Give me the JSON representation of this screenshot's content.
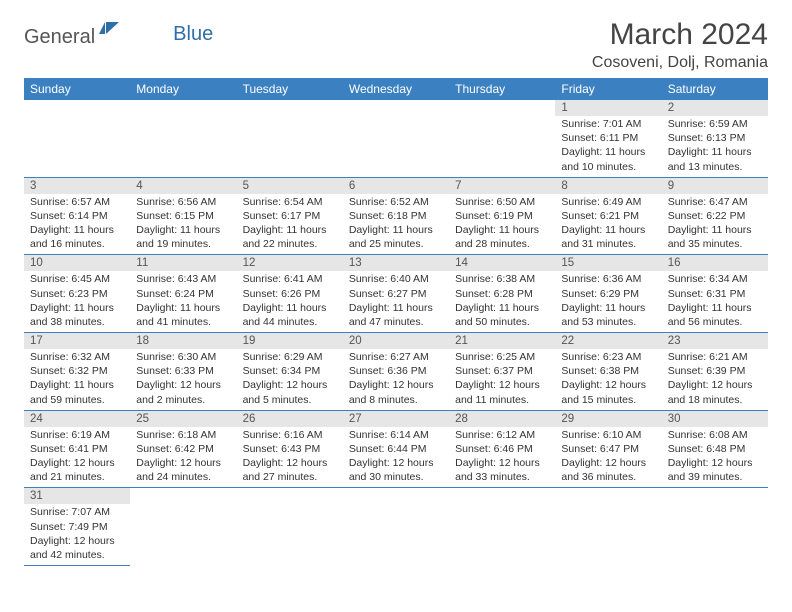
{
  "logo": {
    "part1": "General",
    "part2": "Blue"
  },
  "title": "March 2024",
  "location": "Cosoveni, Dolj, Romania",
  "colors": {
    "header_bg": "#3b81c2",
    "header_fg": "#ffffff",
    "daynum_bg": "#e6e6e6",
    "border": "#3b81c2",
    "text": "#333333",
    "logo_gray": "#555555",
    "logo_blue": "#2f6fa8"
  },
  "weekdays": [
    "Sunday",
    "Monday",
    "Tuesday",
    "Wednesday",
    "Thursday",
    "Friday",
    "Saturday"
  ],
  "weeks": [
    {
      "nums": [
        "",
        "",
        "",
        "",
        "",
        "1",
        "2"
      ],
      "cells": [
        null,
        null,
        null,
        null,
        null,
        {
          "sunrise": "Sunrise: 7:01 AM",
          "sunset": "Sunset: 6:11 PM",
          "day1": "Daylight: 11 hours",
          "day2": "and 10 minutes."
        },
        {
          "sunrise": "Sunrise: 6:59 AM",
          "sunset": "Sunset: 6:13 PM",
          "day1": "Daylight: 11 hours",
          "day2": "and 13 minutes."
        }
      ]
    },
    {
      "nums": [
        "3",
        "4",
        "5",
        "6",
        "7",
        "8",
        "9"
      ],
      "cells": [
        {
          "sunrise": "Sunrise: 6:57 AM",
          "sunset": "Sunset: 6:14 PM",
          "day1": "Daylight: 11 hours",
          "day2": "and 16 minutes."
        },
        {
          "sunrise": "Sunrise: 6:56 AM",
          "sunset": "Sunset: 6:15 PM",
          "day1": "Daylight: 11 hours",
          "day2": "and 19 minutes."
        },
        {
          "sunrise": "Sunrise: 6:54 AM",
          "sunset": "Sunset: 6:17 PM",
          "day1": "Daylight: 11 hours",
          "day2": "and 22 minutes."
        },
        {
          "sunrise": "Sunrise: 6:52 AM",
          "sunset": "Sunset: 6:18 PM",
          "day1": "Daylight: 11 hours",
          "day2": "and 25 minutes."
        },
        {
          "sunrise": "Sunrise: 6:50 AM",
          "sunset": "Sunset: 6:19 PM",
          "day1": "Daylight: 11 hours",
          "day2": "and 28 minutes."
        },
        {
          "sunrise": "Sunrise: 6:49 AM",
          "sunset": "Sunset: 6:21 PM",
          "day1": "Daylight: 11 hours",
          "day2": "and 31 minutes."
        },
        {
          "sunrise": "Sunrise: 6:47 AM",
          "sunset": "Sunset: 6:22 PM",
          "day1": "Daylight: 11 hours",
          "day2": "and 35 minutes."
        }
      ]
    },
    {
      "nums": [
        "10",
        "11",
        "12",
        "13",
        "14",
        "15",
        "16"
      ],
      "cells": [
        {
          "sunrise": "Sunrise: 6:45 AM",
          "sunset": "Sunset: 6:23 PM",
          "day1": "Daylight: 11 hours",
          "day2": "and 38 minutes."
        },
        {
          "sunrise": "Sunrise: 6:43 AM",
          "sunset": "Sunset: 6:24 PM",
          "day1": "Daylight: 11 hours",
          "day2": "and 41 minutes."
        },
        {
          "sunrise": "Sunrise: 6:41 AM",
          "sunset": "Sunset: 6:26 PM",
          "day1": "Daylight: 11 hours",
          "day2": "and 44 minutes."
        },
        {
          "sunrise": "Sunrise: 6:40 AM",
          "sunset": "Sunset: 6:27 PM",
          "day1": "Daylight: 11 hours",
          "day2": "and 47 minutes."
        },
        {
          "sunrise": "Sunrise: 6:38 AM",
          "sunset": "Sunset: 6:28 PM",
          "day1": "Daylight: 11 hours",
          "day2": "and 50 minutes."
        },
        {
          "sunrise": "Sunrise: 6:36 AM",
          "sunset": "Sunset: 6:29 PM",
          "day1": "Daylight: 11 hours",
          "day2": "and 53 minutes."
        },
        {
          "sunrise": "Sunrise: 6:34 AM",
          "sunset": "Sunset: 6:31 PM",
          "day1": "Daylight: 11 hours",
          "day2": "and 56 minutes."
        }
      ]
    },
    {
      "nums": [
        "17",
        "18",
        "19",
        "20",
        "21",
        "22",
        "23"
      ],
      "cells": [
        {
          "sunrise": "Sunrise: 6:32 AM",
          "sunset": "Sunset: 6:32 PM",
          "day1": "Daylight: 11 hours",
          "day2": "and 59 minutes."
        },
        {
          "sunrise": "Sunrise: 6:30 AM",
          "sunset": "Sunset: 6:33 PM",
          "day1": "Daylight: 12 hours",
          "day2": "and 2 minutes."
        },
        {
          "sunrise": "Sunrise: 6:29 AM",
          "sunset": "Sunset: 6:34 PM",
          "day1": "Daylight: 12 hours",
          "day2": "and 5 minutes."
        },
        {
          "sunrise": "Sunrise: 6:27 AM",
          "sunset": "Sunset: 6:36 PM",
          "day1": "Daylight: 12 hours",
          "day2": "and 8 minutes."
        },
        {
          "sunrise": "Sunrise: 6:25 AM",
          "sunset": "Sunset: 6:37 PM",
          "day1": "Daylight: 12 hours",
          "day2": "and 11 minutes."
        },
        {
          "sunrise": "Sunrise: 6:23 AM",
          "sunset": "Sunset: 6:38 PM",
          "day1": "Daylight: 12 hours",
          "day2": "and 15 minutes."
        },
        {
          "sunrise": "Sunrise: 6:21 AM",
          "sunset": "Sunset: 6:39 PM",
          "day1": "Daylight: 12 hours",
          "day2": "and 18 minutes."
        }
      ]
    },
    {
      "nums": [
        "24",
        "25",
        "26",
        "27",
        "28",
        "29",
        "30"
      ],
      "cells": [
        {
          "sunrise": "Sunrise: 6:19 AM",
          "sunset": "Sunset: 6:41 PM",
          "day1": "Daylight: 12 hours",
          "day2": "and 21 minutes."
        },
        {
          "sunrise": "Sunrise: 6:18 AM",
          "sunset": "Sunset: 6:42 PM",
          "day1": "Daylight: 12 hours",
          "day2": "and 24 minutes."
        },
        {
          "sunrise": "Sunrise: 6:16 AM",
          "sunset": "Sunset: 6:43 PM",
          "day1": "Daylight: 12 hours",
          "day2": "and 27 minutes."
        },
        {
          "sunrise": "Sunrise: 6:14 AM",
          "sunset": "Sunset: 6:44 PM",
          "day1": "Daylight: 12 hours",
          "day2": "and 30 minutes."
        },
        {
          "sunrise": "Sunrise: 6:12 AM",
          "sunset": "Sunset: 6:46 PM",
          "day1": "Daylight: 12 hours",
          "day2": "and 33 minutes."
        },
        {
          "sunrise": "Sunrise: 6:10 AM",
          "sunset": "Sunset: 6:47 PM",
          "day1": "Daylight: 12 hours",
          "day2": "and 36 minutes."
        },
        {
          "sunrise": "Sunrise: 6:08 AM",
          "sunset": "Sunset: 6:48 PM",
          "day1": "Daylight: 12 hours",
          "day2": "and 39 minutes."
        }
      ]
    },
    {
      "nums": [
        "31",
        "",
        "",
        "",
        "",
        "",
        ""
      ],
      "cells": [
        {
          "sunrise": "Sunrise: 7:07 AM",
          "sunset": "Sunset: 7:49 PM",
          "day1": "Daylight: 12 hours",
          "day2": "and 42 minutes."
        },
        null,
        null,
        null,
        null,
        null,
        null
      ]
    }
  ]
}
